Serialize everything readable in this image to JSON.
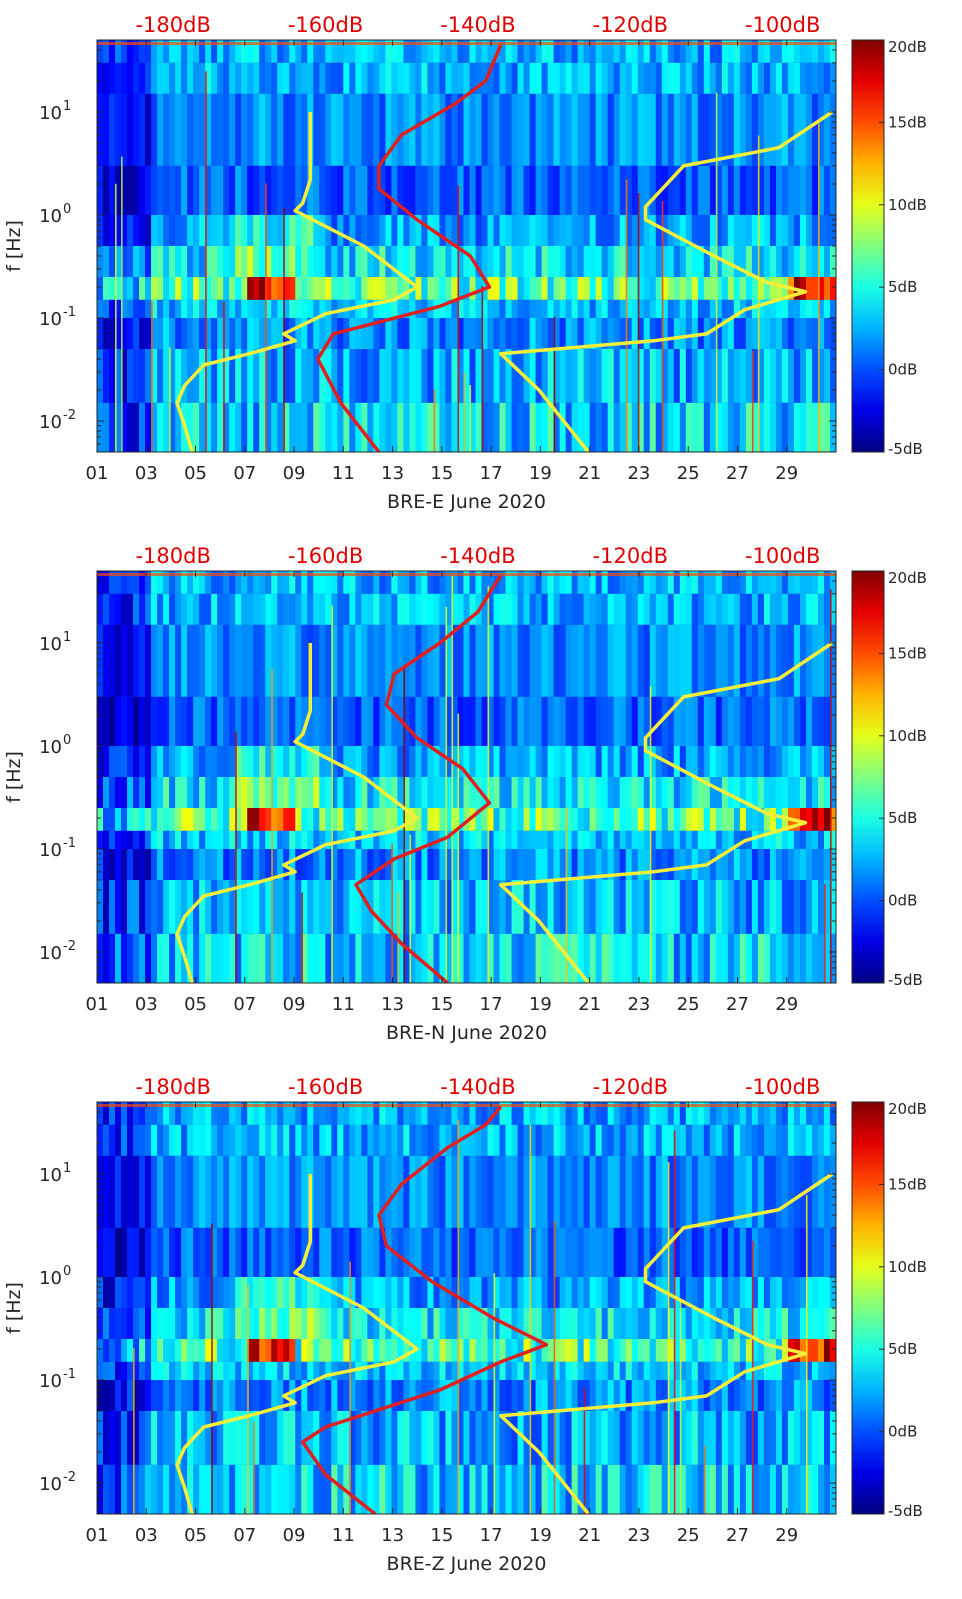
{
  "chart_data": [
    {
      "type": "heatmap",
      "title": "",
      "xlabel": "BRE-E June 2020",
      "ylabel": "f [Hz]",
      "x_ticks": [
        "01",
        "03",
        "05",
        "07",
        "09",
        "11",
        "13",
        "15",
        "17",
        "19",
        "21",
        "23",
        "25",
        "27",
        "29"
      ],
      "xlim": [
        1,
        31
      ],
      "y_scale": "log",
      "ylim": [
        0.005,
        50
      ],
      "y_ticks": [
        {
          "base": "10",
          "exp": "-2",
          "value": 0.01
        },
        {
          "base": "10",
          "exp": "-1",
          "value": 0.1
        },
        {
          "base": "10",
          "exp": "0",
          "value": 1
        },
        {
          "base": "10",
          "exp": "1",
          "value": 10
        }
      ],
      "top_axis_labels": [
        "-180dB",
        "-160dB",
        "-140dB",
        "-120dB",
        "-100dB"
      ],
      "top_axis_values": [
        -180,
        -160,
        -140,
        -120,
        -100
      ],
      "top_axis_range": [
        -190,
        -93
      ],
      "colorbar": {
        "labels": [
          "20dB",
          "15dB",
          "10dB",
          "5dB",
          "0dB",
          "-5dB"
        ],
        "range": [
          -5,
          20
        ],
        "colormap": "jet"
      },
      "series": [
        {
          "color": "#f5ef3a",
          "points": [
            [
              -177.5,
              0.005
            ],
            [
              -178.5,
              0.009
            ],
            [
              -179.5,
              0.015
            ],
            [
              -178.5,
              0.022
            ],
            [
              -176,
              0.035
            ],
            [
              -170,
              0.045
            ],
            [
              -164,
              0.06
            ],
            [
              -165.5,
              0.07
            ],
            [
              -160,
              0.11
            ],
            [
              -151,
              0.15
            ],
            [
              -148,
              0.2
            ],
            [
              -155,
              0.5
            ],
            [
              -164,
              1.1
            ],
            [
              -163,
              1.3
            ],
            [
              -162,
              2.2
            ],
            [
              -162,
              5
            ],
            [
              -162,
              10
            ]
          ]
        },
        {
          "color": "#e02020",
          "points": [
            [
              -153,
              0.005
            ],
            [
              -158,
              0.015
            ],
            [
              -161,
              0.04
            ],
            [
              -159,
              0.07
            ],
            [
              -145,
              0.13
            ],
            [
              -138.5,
              0.2
            ],
            [
              -141,
              0.4
            ],
            [
              -148,
              0.9
            ],
            [
              -153,
              1.8
            ],
            [
              -153,
              3
            ],
            [
              -150,
              6
            ],
            [
              -143,
              12
            ],
            [
              -139,
              20
            ],
            [
              -138,
              30
            ],
            [
              -137,
              45
            ]
          ]
        },
        {
          "color": "#f5ef3a",
          "points": [
            [
              -125.5,
              0.005
            ],
            [
              -132,
              0.02
            ],
            [
              -137,
              0.045
            ],
            [
              -117,
              0.06
            ],
            [
              -110,
              0.07
            ],
            [
              -105,
              0.12
            ],
            [
              -97,
              0.18
            ],
            [
              -102,
              0.22
            ],
            [
              -109,
              0.4
            ],
            [
              -118,
              0.9
            ],
            [
              -118,
              1.2
            ],
            [
              -113,
              3
            ],
            [
              -100.5,
              4.5
            ],
            [
              -93.5,
              10
            ]
          ]
        }
      ]
    },
    {
      "type": "heatmap",
      "title": "",
      "xlabel": "BRE-N June 2020",
      "ylabel": "f [Hz]",
      "x_ticks": [
        "01",
        "03",
        "05",
        "07",
        "09",
        "11",
        "13",
        "15",
        "17",
        "19",
        "21",
        "23",
        "25",
        "27",
        "29"
      ],
      "xlim": [
        1,
        31
      ],
      "y_scale": "log",
      "ylim": [
        0.005,
        50
      ],
      "y_ticks": [
        {
          "base": "10",
          "exp": "-2",
          "value": 0.01
        },
        {
          "base": "10",
          "exp": "-1",
          "value": 0.1
        },
        {
          "base": "10",
          "exp": "0",
          "value": 1
        },
        {
          "base": "10",
          "exp": "1",
          "value": 10
        }
      ],
      "top_axis_labels": [
        "-180dB",
        "-160dB",
        "-140dB",
        "-120dB",
        "-100dB"
      ],
      "top_axis_values": [
        -180,
        -160,
        -140,
        -120,
        -100
      ],
      "top_axis_range": [
        -190,
        -93
      ],
      "colorbar": {
        "labels": [
          "20dB",
          "15dB",
          "10dB",
          "5dB",
          "0dB",
          "-5dB"
        ],
        "range": [
          -5,
          20
        ],
        "colormap": "jet"
      },
      "series": [
        {
          "color": "#f5ef3a",
          "points": [
            [
              -177.5,
              0.005
            ],
            [
              -178.5,
              0.009
            ],
            [
              -179.5,
              0.015
            ],
            [
              -178.5,
              0.022
            ],
            [
              -176,
              0.035
            ],
            [
              -170,
              0.045
            ],
            [
              -164,
              0.06
            ],
            [
              -165.5,
              0.07
            ],
            [
              -160,
              0.11
            ],
            [
              -151,
              0.15
            ],
            [
              -148,
              0.2
            ],
            [
              -155,
              0.5
            ],
            [
              -164,
              1.1
            ],
            [
              -163,
              1.3
            ],
            [
              -162,
              2.2
            ],
            [
              -162,
              5
            ],
            [
              -162,
              10
            ]
          ]
        },
        {
          "color": "#e02020",
          "points": [
            [
              -144,
              0.005
            ],
            [
              -150,
              0.012
            ],
            [
              -154,
              0.025
            ],
            [
              -156,
              0.045
            ],
            [
              -151,
              0.08
            ],
            [
              -144,
              0.13
            ],
            [
              -138.5,
              0.28
            ],
            [
              -142,
              0.6
            ],
            [
              -148,
              1.2
            ],
            [
              -152,
              2.5
            ],
            [
              -151,
              5
            ],
            [
              -145,
              10
            ],
            [
              -140,
              20
            ],
            [
              -138,
              35
            ],
            [
              -137,
              45
            ]
          ]
        },
        {
          "color": "#f5ef3a",
          "points": [
            [
              -125.5,
              0.005
            ],
            [
              -132,
              0.02
            ],
            [
              -137,
              0.045
            ],
            [
              -117,
              0.06
            ],
            [
              -110,
              0.07
            ],
            [
              -105,
              0.12
            ],
            [
              -97,
              0.18
            ],
            [
              -102,
              0.22
            ],
            [
              -109,
              0.4
            ],
            [
              -118,
              0.9
            ],
            [
              -118,
              1.2
            ],
            [
              -113,
              3
            ],
            [
              -100.5,
              4.5
            ],
            [
              -93.5,
              10
            ]
          ]
        }
      ]
    },
    {
      "type": "heatmap",
      "title": "",
      "xlabel": "BRE-Z June 2020",
      "ylabel": "f [Hz]",
      "x_ticks": [
        "01",
        "03",
        "05",
        "07",
        "09",
        "11",
        "13",
        "15",
        "17",
        "19",
        "21",
        "23",
        "25",
        "27",
        "29"
      ],
      "xlim": [
        1,
        31
      ],
      "y_scale": "log",
      "ylim": [
        0.005,
        50
      ],
      "y_ticks": [
        {
          "base": "10",
          "exp": "-2",
          "value": 0.01
        },
        {
          "base": "10",
          "exp": "-1",
          "value": 0.1
        },
        {
          "base": "10",
          "exp": "0",
          "value": 1
        },
        {
          "base": "10",
          "exp": "1",
          "value": 10
        }
      ],
      "top_axis_labels": [
        "-180dB",
        "-160dB",
        "-140dB",
        "-120dB",
        "-100dB"
      ],
      "top_axis_values": [
        -180,
        -160,
        -140,
        -120,
        -100
      ],
      "top_axis_range": [
        -190,
        -93
      ],
      "colorbar": {
        "labels": [
          "20dB",
          "15dB",
          "10dB",
          "5dB",
          "0dB",
          "-5dB"
        ],
        "range": [
          -5,
          20
        ],
        "colormap": "jet"
      },
      "series": [
        {
          "color": "#f5ef3a",
          "points": [
            [
              -177.5,
              0.005
            ],
            [
              -178.5,
              0.009
            ],
            [
              -179.5,
              0.015
            ],
            [
              -178.5,
              0.022
            ],
            [
              -176,
              0.035
            ],
            [
              -170,
              0.045
            ],
            [
              -164,
              0.06
            ],
            [
              -165.5,
              0.07
            ],
            [
              -160,
              0.11
            ],
            [
              -151,
              0.15
            ],
            [
              -148,
              0.2
            ],
            [
              -155,
              0.5
            ],
            [
              -164,
              1.1
            ],
            [
              -163,
              1.3
            ],
            [
              -162,
              2.2
            ],
            [
              -162,
              5
            ],
            [
              -162,
              10
            ]
          ]
        },
        {
          "color": "#e02020",
          "points": [
            [
              -153.5,
              0.005
            ],
            [
              -160,
              0.012
            ],
            [
              -163,
              0.025
            ],
            [
              -160,
              0.035
            ],
            [
              -145,
              0.08
            ],
            [
              -137,
              0.15
            ],
            [
              -131,
              0.22
            ],
            [
              -138,
              0.4
            ],
            [
              -146,
              0.9
            ],
            [
              -152,
              2
            ],
            [
              -153,
              4
            ],
            [
              -150,
              8
            ],
            [
              -144,
              18
            ],
            [
              -139,
              30
            ],
            [
              -137,
              45
            ]
          ]
        },
        {
          "color": "#f5ef3a",
          "points": [
            [
              -125.5,
              0.005
            ],
            [
              -132,
              0.02
            ],
            [
              -137,
              0.045
            ],
            [
              -117,
              0.06
            ],
            [
              -110,
              0.07
            ],
            [
              -105,
              0.12
            ],
            [
              -97,
              0.18
            ],
            [
              -102,
              0.22
            ],
            [
              -109,
              0.4
            ],
            [
              -118,
              0.9
            ],
            [
              -118,
              1.2
            ],
            [
              -113,
              3
            ],
            [
              -100.5,
              4.5
            ],
            [
              -93.5,
              10
            ]
          ]
        }
      ]
    }
  ]
}
